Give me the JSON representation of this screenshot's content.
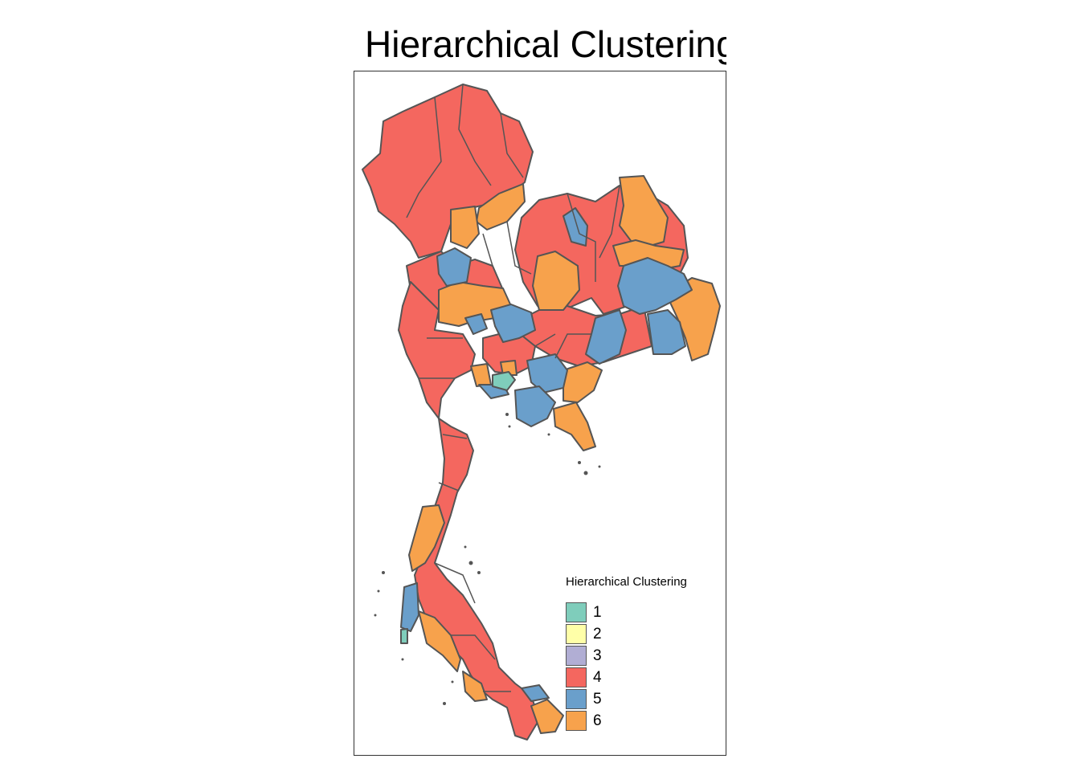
{
  "title": "Hierarchical Clustering",
  "legend": {
    "title": "Hierarchical Clustering",
    "items": [
      {
        "label": "1",
        "color": "#7FCDBB"
      },
      {
        "label": "2",
        "color": "#FFFFA8"
      },
      {
        "label": "3",
        "color": "#B1AED4"
      },
      {
        "label": "4",
        "color": "#F4675F"
      },
      {
        "label": "5",
        "color": "#6A9FCB"
      },
      {
        "label": "6",
        "color": "#F7A24C"
      }
    ]
  },
  "colors": {
    "border": "#555555",
    "frame": "#333333"
  }
}
